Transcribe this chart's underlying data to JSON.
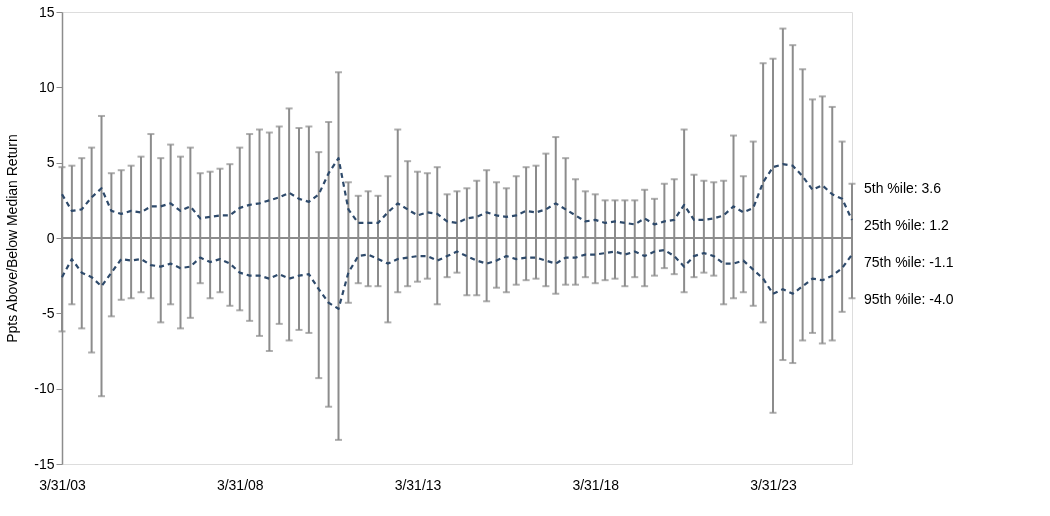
{
  "chart_data": {
    "type": "line",
    "ylabel": "Ppts Above/Below Median Return",
    "categories": [
      "3/31/03",
      null,
      null,
      null,
      null,
      null,
      null,
      null,
      null,
      null,
      null,
      null,
      null,
      null,
      null,
      null,
      null,
      null,
      "3/31/08",
      null,
      null,
      null,
      null,
      null,
      null,
      null,
      null,
      null,
      null,
      null,
      null,
      null,
      null,
      null,
      null,
      null,
      "3/31/13",
      null,
      null,
      null,
      null,
      null,
      null,
      null,
      null,
      null,
      null,
      null,
      null,
      null,
      null,
      null,
      null,
      null,
      "3/31/18",
      null,
      null,
      null,
      null,
      null,
      null,
      null,
      null,
      null,
      null,
      null,
      null,
      null,
      null,
      null,
      null,
      null,
      "3/31/23",
      null,
      null,
      null,
      null,
      null,
      null,
      null,
      null
    ],
    "ylim": [
      -15,
      15
    ],
    "yticks": [
      -15,
      -10,
      -5,
      0,
      5,
      10,
      15
    ],
    "series": [
      {
        "color": "#8c8c8c",
        "line_style": "solid",
        "values": [
          0,
          0,
          0,
          0,
          0,
          0,
          0,
          0,
          0,
          0,
          0,
          0,
          0,
          0,
          0,
          0,
          0,
          0,
          0,
          0,
          0,
          0,
          0,
          0,
          0,
          0,
          0,
          0,
          0,
          0,
          0,
          0,
          0,
          0,
          0,
          0,
          0,
          0,
          0,
          0,
          0,
          0,
          0,
          0,
          0,
          0,
          0,
          0,
          0,
          0,
          0,
          0,
          0,
          0,
          0,
          0,
          0,
          0,
          0,
          0,
          0,
          0,
          0,
          0,
          0,
          0,
          0,
          0,
          0,
          0,
          0,
          0,
          0,
          0,
          0,
          0,
          0,
          0,
          0,
          0,
          0
        ],
        "errors": [
          [
            -6.2,
            4.7
          ],
          [
            -4.4,
            4.8
          ],
          [
            -6.0,
            5.3
          ],
          [
            -7.6,
            6.0
          ],
          [
            -10.5,
            8.1
          ],
          [
            -5.2,
            4.3
          ],
          [
            -4.1,
            4.5
          ],
          [
            -4.0,
            4.8
          ],
          [
            -3.6,
            5.4
          ],
          [
            -4.0,
            6.9
          ],
          [
            -5.6,
            5.3
          ],
          [
            -4.4,
            6.2
          ],
          [
            -6.0,
            5.4
          ],
          [
            -5.3,
            6.0
          ],
          [
            -3.0,
            4.3
          ],
          [
            -4.0,
            4.4
          ],
          [
            -3.6,
            4.6
          ],
          [
            -4.5,
            4.9
          ],
          [
            -4.8,
            6.0
          ],
          [
            -5.5,
            6.9
          ],
          [
            -6.5,
            7.2
          ],
          [
            -7.5,
            7.0
          ],
          [
            -5.7,
            7.4
          ],
          [
            -6.8,
            8.6
          ],
          [
            -6.1,
            7.3
          ],
          [
            -6.3,
            7.4
          ],
          [
            -9.3,
            5.7
          ],
          [
            -11.2,
            7.7
          ],
          [
            -13.4,
            11.0
          ],
          [
            -4.3,
            3.7
          ],
          [
            -3.0,
            2.8
          ],
          [
            -3.2,
            3.1
          ],
          [
            -3.2,
            2.8
          ],
          [
            -5.6,
            4.1
          ],
          [
            -3.6,
            7.2
          ],
          [
            -3.2,
            5.1
          ],
          [
            -2.9,
            4.4
          ],
          [
            -2.7,
            4.3
          ],
          [
            -4.4,
            4.7
          ],
          [
            -2.6,
            2.9
          ],
          [
            -2.3,
            3.1
          ],
          [
            -3.8,
            3.3
          ],
          [
            -3.8,
            3.8
          ],
          [
            -4.2,
            4.5
          ],
          [
            -3.3,
            3.7
          ],
          [
            -3.6,
            3.3
          ],
          [
            -3.1,
            4.1
          ],
          [
            -2.8,
            4.7
          ],
          [
            -2.7,
            4.8
          ],
          [
            -3.2,
            5.6
          ],
          [
            -3.7,
            6.7
          ],
          [
            -3.1,
            5.3
          ],
          [
            -3.1,
            3.9
          ],
          [
            -2.6,
            3.1
          ],
          [
            -3.0,
            2.9
          ],
          [
            -2.8,
            2.5
          ],
          [
            -2.7,
            2.5
          ],
          [
            -3.2,
            2.5
          ],
          [
            -2.6,
            2.5
          ],
          [
            -3.2,
            3.2
          ],
          [
            -2.5,
            2.6
          ],
          [
            -2.0,
            3.6
          ],
          [
            -2.4,
            3.9
          ],
          [
            -3.6,
            7.2
          ],
          [
            -2.6,
            4.2
          ],
          [
            -2.3,
            3.8
          ],
          [
            -2.5,
            3.7
          ],
          [
            -4.4,
            3.8
          ],
          [
            -4.0,
            6.8
          ],
          [
            -3.6,
            4.1
          ],
          [
            -4.5,
            6.4
          ],
          [
            -5.6,
            11.6
          ],
          [
            -11.6,
            11.9
          ],
          [
            -8.1,
            13.9
          ],
          [
            -8.3,
            12.8
          ],
          [
            -6.8,
            11.2
          ],
          [
            -6.3,
            9.2
          ],
          [
            -7.0,
            9.4
          ],
          [
            -6.8,
            8.7
          ],
          [
            -4.9,
            6.4
          ],
          [
            -4.0,
            3.6
          ]
        ]
      },
      {
        "color": "#2e4a6b",
        "line_style": "dashed",
        "values": [
          2.9,
          1.8,
          1.9,
          2.7,
          3.3,
          1.8,
          1.6,
          1.8,
          1.7,
          2.1,
          2.1,
          2.3,
          1.8,
          2.1,
          1.3,
          1.4,
          1.5,
          1.5,
          2.0,
          2.2,
          2.3,
          2.5,
          2.7,
          3.0,
          2.6,
          2.4,
          2.9,
          4.3,
          5.3,
          1.9,
          1.0,
          1.0,
          1.0,
          1.7,
          2.3,
          1.9,
          1.5,
          1.7,
          1.6,
          1.1,
          1.0,
          1.3,
          1.4,
          1.7,
          1.5,
          1.4,
          1.5,
          1.8,
          1.7,
          1.9,
          2.3,
          1.9,
          1.5,
          1.1,
          1.2,
          1.0,
          1.1,
          1.0,
          0.9,
          1.3,
          0.9,
          1.1,
          1.2,
          2.2,
          1.2,
          1.2,
          1.3,
          1.5,
          2.1,
          1.7,
          2.0,
          3.7,
          4.7,
          4.9,
          4.8,
          4.1,
          3.2,
          3.5,
          2.9,
          2.6,
          1.2
        ]
      },
      {
        "color": "#2e4a6b",
        "line_style": "dashed",
        "values": [
          -2.6,
          -1.4,
          -2.3,
          -2.6,
          -3.2,
          -2.3,
          -1.4,
          -1.5,
          -1.4,
          -1.8,
          -1.9,
          -1.7,
          -2.0,
          -1.9,
          -1.3,
          -1.6,
          -1.4,
          -1.7,
          -2.3,
          -2.5,
          -2.5,
          -2.7,
          -2.4,
          -2.7,
          -2.5,
          -2.4,
          -3.4,
          -4.3,
          -4.7,
          -2.3,
          -1.2,
          -1.1,
          -1.4,
          -1.7,
          -1.4,
          -1.3,
          -1.2,
          -1.2,
          -1.5,
          -1.2,
          -0.9,
          -1.2,
          -1.5,
          -1.7,
          -1.5,
          -1.2,
          -1.4,
          -1.3,
          -1.3,
          -1.5,
          -1.7,
          -1.3,
          -1.3,
          -1.1,
          -1.1,
          -1.0,
          -0.9,
          -1.1,
          -0.9,
          -1.2,
          -0.9,
          -0.8,
          -1.2,
          -1.9,
          -1.2,
          -1.0,
          -1.2,
          -1.7,
          -1.7,
          -1.5,
          -2.1,
          -2.7,
          -3.7,
          -3.4,
          -3.7,
          -3.2,
          -2.7,
          -2.8,
          -2.5,
          -2.0,
          -1.1
        ]
      }
    ],
    "annotations": [
      "5th %ile: 3.6",
      "25th %ile: 1.2",
      "75th %ile: -1.1",
      "95th %ile: -4.0"
    ]
  }
}
